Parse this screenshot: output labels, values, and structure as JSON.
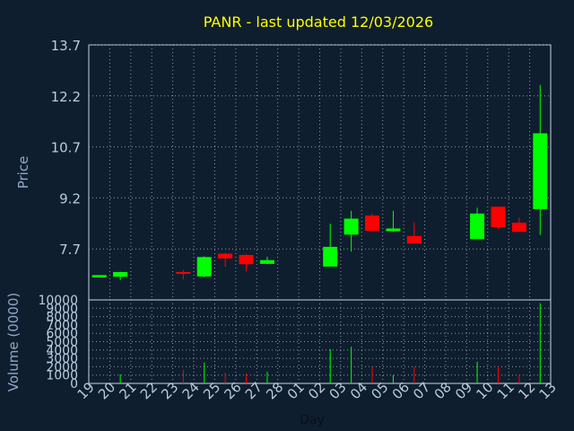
{
  "chart_data": [
    {
      "type": "candlestick",
      "title": "PANR - last updated 12/03/2026",
      "ylabel": "Price",
      "ylim": [
        6.2,
        13.7
      ],
      "y_ticks": [
        "13.7",
        "12.2",
        "10.7",
        "9.2",
        "7.7"
      ],
      "x_ticks": [
        "19",
        "20",
        "21",
        "22",
        "23",
        "24",
        "25",
        "26",
        "27",
        "28",
        "01",
        "02",
        "03",
        "04",
        "05",
        "06",
        "07",
        "08",
        "09",
        "10",
        "11",
        "12",
        "13"
      ],
      "grid": true,
      "colors": {
        "up": "#00ff00",
        "down": "#ff0000",
        "title": "#ffff00",
        "text": "#b8cde0",
        "grid": "#8899aa",
        "background": "#0f1e2e"
      },
      "candles": [
        {
          "x": 0,
          "open": 6.86,
          "close": 6.93,
          "high": 6.93,
          "low": 6.86
        },
        {
          "x": 1,
          "open": 6.88,
          "close": 7.02,
          "high": 7.03,
          "low": 6.78
        },
        {
          "x": 4,
          "open": 7.02,
          "close": 6.99,
          "high": 7.08,
          "low": 6.8
        },
        {
          "x": 5,
          "open": 6.89,
          "close": 7.46,
          "high": 7.48,
          "low": 6.86
        },
        {
          "x": 6,
          "open": 7.56,
          "close": 7.42,
          "high": 7.58,
          "low": 7.17
        },
        {
          "x": 7,
          "open": 7.52,
          "close": 7.25,
          "high": 7.55,
          "low": 7.03
        },
        {
          "x": 8,
          "open": 7.26,
          "close": 7.37,
          "high": 7.47,
          "low": 7.26
        },
        {
          "x": 11,
          "open": 7.18,
          "close": 7.76,
          "high": 8.44,
          "low": 7.18
        },
        {
          "x": 12,
          "open": 8.12,
          "close": 8.59,
          "high": 8.82,
          "low": 7.62
        },
        {
          "x": 13,
          "open": 8.68,
          "close": 8.23,
          "high": 8.74,
          "low": 8.23
        },
        {
          "x": 14,
          "open": 8.22,
          "close": 8.3,
          "high": 8.82,
          "low": 8.2
        },
        {
          "x": 15,
          "open": 8.08,
          "close": 7.86,
          "high": 8.49,
          "low": 7.86
        },
        {
          "x": 18,
          "open": 7.99,
          "close": 8.74,
          "high": 8.91,
          "low": 7.99
        },
        {
          "x": 19,
          "open": 8.94,
          "close": 8.34,
          "high": 8.94,
          "low": 8.28
        },
        {
          "x": 20,
          "open": 8.47,
          "close": 8.2,
          "high": 8.62,
          "low": 8.2
        },
        {
          "x": 21,
          "open": 8.87,
          "close": 11.1,
          "high": 12.52,
          "low": 8.11
        }
      ]
    },
    {
      "type": "bar",
      "ylabel": "Volume (0000)",
      "xlabel": "Day",
      "ylim": [
        0,
        10000
      ],
      "y_ticks": [
        "10000",
        "9000",
        "8000",
        "7000",
        "6000",
        "5000",
        "4000",
        "3000",
        "2000",
        "1000",
        "0"
      ],
      "volumes": [
        {
          "x": 1,
          "value": 1100,
          "color": "#00ff00"
        },
        {
          "x": 4,
          "value": 1600,
          "color": "#ff0000"
        },
        {
          "x": 5,
          "value": 2500,
          "color": "#00ff00"
        },
        {
          "x": 6,
          "value": 1300,
          "color": "#ff0000"
        },
        {
          "x": 7,
          "value": 1200,
          "color": "#ff0000"
        },
        {
          "x": 8,
          "value": 1400,
          "color": "#00ff00"
        },
        {
          "x": 11,
          "value": 4100,
          "color": "#00ff00"
        },
        {
          "x": 12,
          "value": 4400,
          "color": "#00ff00"
        },
        {
          "x": 13,
          "value": 2000,
          "color": "#ff0000"
        },
        {
          "x": 14,
          "value": 1000,
          "color": "#00ff00"
        },
        {
          "x": 15,
          "value": 2000,
          "color": "#ff0000"
        },
        {
          "x": 18,
          "value": 2600,
          "color": "#00ff00"
        },
        {
          "x": 19,
          "value": 2000,
          "color": "#ff0000"
        },
        {
          "x": 20,
          "value": 1000,
          "color": "#ff0000"
        },
        {
          "x": 21,
          "value": 9600,
          "color": "#00ff00"
        }
      ]
    }
  ]
}
